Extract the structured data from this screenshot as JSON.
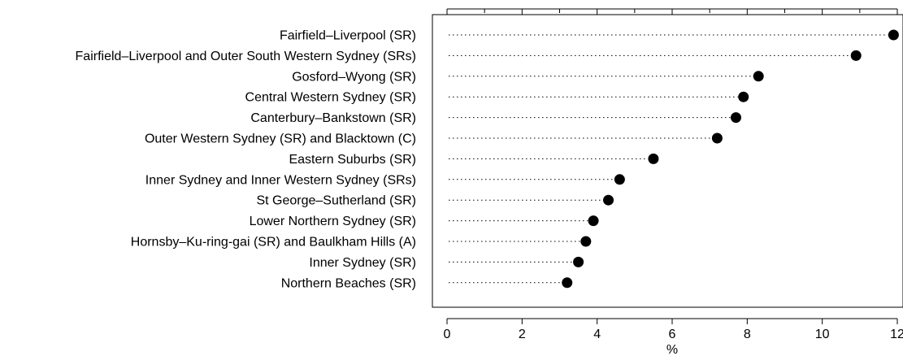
{
  "chart_data": {
    "type": "scatter",
    "title": "",
    "xlabel": "%",
    "ylabel": "",
    "xlim": [
      0,
      12
    ],
    "x_ticks": [
      "0",
      "2",
      "4",
      "6",
      "8",
      "10",
      "12"
    ],
    "grid": false,
    "categories": [
      "Fairfield–Liverpool (SR)",
      "Fairfield–Liverpool and Outer South Western Sydney (SRs)",
      "Gosford–Wyong (SR)",
      "Central Western Sydney (SR)",
      "Canterbury–Bankstown (SR)",
      "Outer Western Sydney (SR) and Blacktown (C)",
      "Eastern Suburbs (SR)",
      "Inner Sydney and Inner Western Sydney (SRs)",
      "St George–Sutherland (SR)",
      "Lower Northern Sydney (SR)",
      "Hornsby–Ku-ring-gai (SR) and Baulkham Hills (A)",
      "Inner Sydney (SR)",
      "Northern Beaches (SR)"
    ],
    "values": [
      11.9,
      10.9,
      8.3,
      7.9,
      7.7,
      7.2,
      5.5,
      4.6,
      4.3,
      3.9,
      3.7,
      3.5,
      3.2
    ],
    "marker_color": "#000000"
  }
}
